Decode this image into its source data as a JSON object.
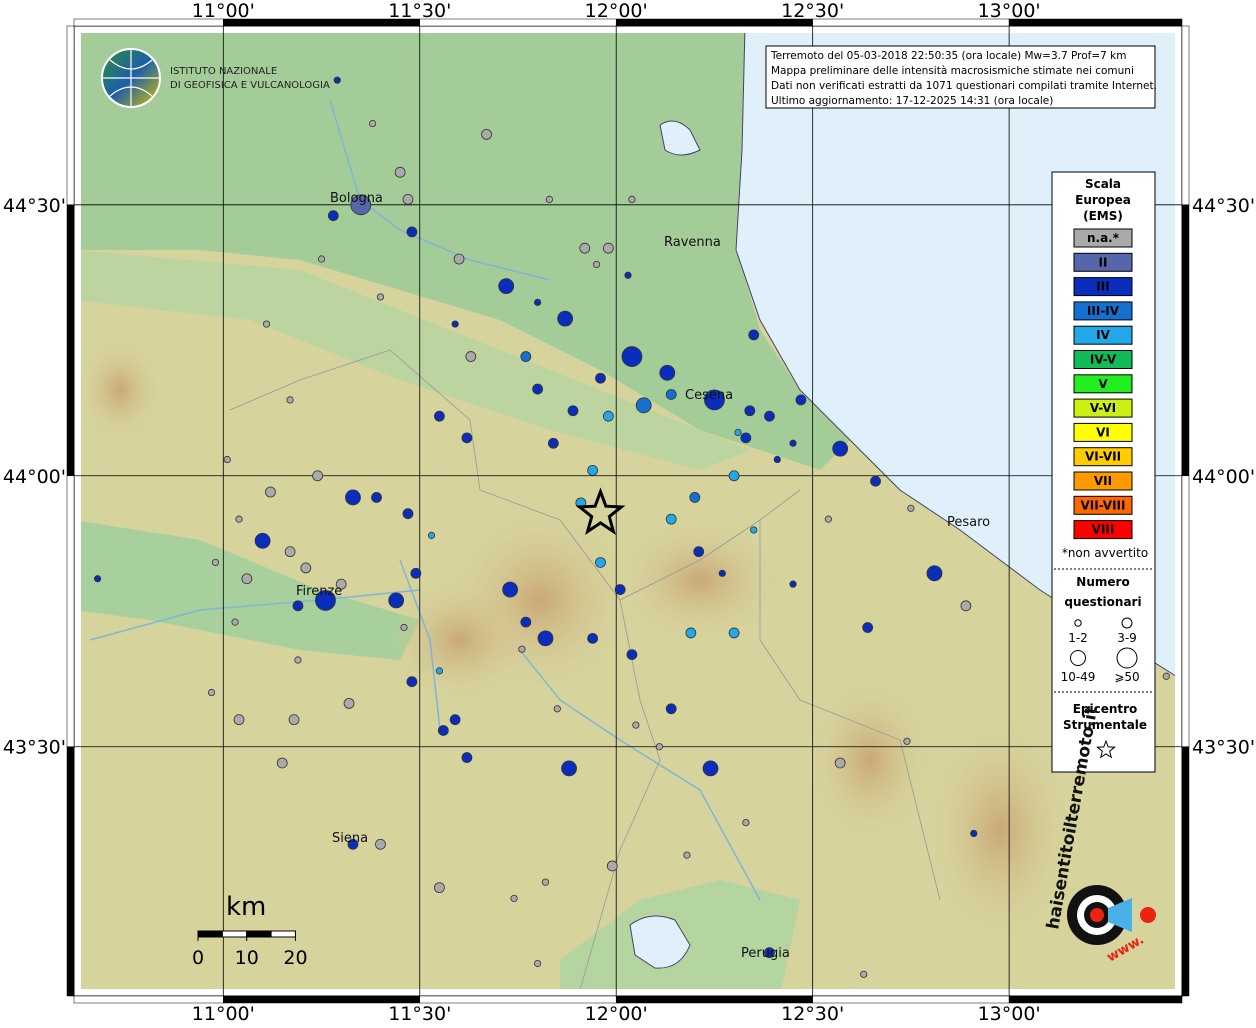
{
  "map": {
    "info": [
      "Terremoto del 05-03-2018 22:50:35 (ora locale) Mw=3.7 Prof=7 km",
      "Mappa preliminare delle intensità macrosismiche stimate nei comuni",
      "Dati non verificati estratti da 1071 questionari compilati tramite Internet.",
      "Ultimo aggiornamento: 17-12-2025 14:31 (ora locale)"
    ],
    "institute": [
      "ISTITUTO NAZIONALE",
      "DI GEOFISICA E VULCANOLOGIA"
    ],
    "lonlim": [
      10.62,
      13.44
    ],
    "latlim": [
      43.04,
      44.83
    ],
    "xticks": [
      {
        "value": 11,
        "label": "11°00'"
      },
      {
        "value": 11.5,
        "label": "11°30'"
      },
      {
        "value": 12,
        "label": "12°00'"
      },
      {
        "value": 12.5,
        "label": "12°30'"
      },
      {
        "value": 13,
        "label": "13°00'"
      }
    ],
    "yticks": [
      {
        "value": 44.5,
        "label": "44°30'"
      },
      {
        "value": 44,
        "label": "44°00'"
      },
      {
        "value": 43.5,
        "label": "43°30'"
      }
    ],
    "cities": [
      "Bologna",
      "Ravenna",
      "Cesena",
      "Pesaro",
      "Firenze",
      "Siena",
      "Perugia"
    ],
    "legend": {
      "title": [
        "Scala",
        "Europea",
        "(EMS)"
      ],
      "items": [
        {
          "label": "n.a.*",
          "color": "#aaaaaa"
        },
        {
          "label": "II",
          "color": "#5566aa"
        },
        {
          "label": "III",
          "color": "#0a2dbb"
        },
        {
          "label": "III-IV",
          "color": "#1570d0"
        },
        {
          "label": "IV",
          "color": "#22a8e8"
        },
        {
          "label": "IV-V",
          "color": "#11bb55"
        },
        {
          "label": "V",
          "color": "#22ee22"
        },
        {
          "label": "V-VI",
          "color": "#ccf011"
        },
        {
          "label": "VI",
          "color": "#ffff00"
        },
        {
          "label": "VI-VII",
          "color": "#ffcc00"
        },
        {
          "label": "VII",
          "color": "#ff9900"
        },
        {
          "label": "VII-VIII",
          "color": "#ff6600"
        },
        {
          "label": "VIII",
          "color": "#ff0000"
        }
      ],
      "note": "*non avvertito",
      "size_title": [
        "Numero",
        "questionari"
      ],
      "sizes": [
        "1-2",
        "3-9",
        "10-49",
        "⩾50"
      ],
      "epi_title": [
        "Epicentro",
        "Strumentale"
      ]
    },
    "epicenter": {
      "lon": 11.96,
      "lat": 43.93
    },
    "scale": {
      "unit": "km",
      "ticks": [
        0,
        10,
        20
      ]
    },
    "site": "haisentitoilterremoto.it",
    "site_prefix": "www.",
    "points": [
      {
        "lon": 11.29,
        "lat": 44.73,
        "i": "III",
        "n": "1-2"
      },
      {
        "lon": 11.38,
        "lat": 44.65,
        "i": "n.a.*",
        "n": "1-2"
      },
      {
        "lon": 11.67,
        "lat": 44.63,
        "i": "n.a.*",
        "n": "3-9"
      },
      {
        "lon": 11.45,
        "lat": 44.56,
        "i": "n.a.*",
        "n": "3-9"
      },
      {
        "lon": 11.35,
        "lat": 44.5,
        "i": "II",
        "n": "⩾50"
      },
      {
        "lon": 11.28,
        "lat": 44.48,
        "i": "III",
        "n": "3-9"
      },
      {
        "lon": 11.47,
        "lat": 44.51,
        "i": "n.a.*",
        "n": "3-9"
      },
      {
        "lon": 11.48,
        "lat": 44.45,
        "i": "III",
        "n": "3-9"
      },
      {
        "lon": 11.6,
        "lat": 44.4,
        "i": "n.a.*",
        "n": "3-9"
      },
      {
        "lon": 11.92,
        "lat": 44.42,
        "i": "n.a.*",
        "n": "3-9"
      },
      {
        "lon": 11.98,
        "lat": 44.42,
        "i": "n.a.*",
        "n": "3-9"
      },
      {
        "lon": 12.03,
        "lat": 44.37,
        "i": "III",
        "n": "1-2"
      },
      {
        "lon": 11.72,
        "lat": 44.35,
        "i": "III",
        "n": "10-49"
      },
      {
        "lon": 11.8,
        "lat": 44.32,
        "i": "III",
        "n": "1-2"
      },
      {
        "lon": 11.87,
        "lat": 44.29,
        "i": "III",
        "n": "10-49"
      },
      {
        "lon": 11.59,
        "lat": 44.28,
        "i": "III",
        "n": "1-2"
      },
      {
        "lon": 11.63,
        "lat": 44.22,
        "i": "n.a.*",
        "n": "3-9"
      },
      {
        "lon": 11.77,
        "lat": 44.22,
        "i": "III-IV",
        "n": "3-9"
      },
      {
        "lon": 12.04,
        "lat": 44.22,
        "i": "III",
        "n": "⩾50"
      },
      {
        "lon": 12.13,
        "lat": 44.19,
        "i": "III",
        "n": "10-49"
      },
      {
        "lon": 11.96,
        "lat": 44.18,
        "i": "III",
        "n": "3-9"
      },
      {
        "lon": 11.8,
        "lat": 44.16,
        "i": "III",
        "n": "3-9"
      },
      {
        "lon": 12.07,
        "lat": 44.13,
        "i": "III-IV",
        "n": "10-49"
      },
      {
        "lon": 12.14,
        "lat": 44.15,
        "i": "III-IV",
        "n": "3-9"
      },
      {
        "lon": 12.25,
        "lat": 44.14,
        "i": "III",
        "n": "⩾50"
      },
      {
        "lon": 11.89,
        "lat": 44.12,
        "i": "III",
        "n": "3-9"
      },
      {
        "lon": 11.98,
        "lat": 44.11,
        "i": "IV",
        "n": "3-9"
      },
      {
        "lon": 11.55,
        "lat": 44.11,
        "i": "III",
        "n": "3-9"
      },
      {
        "lon": 12.35,
        "lat": 44.26,
        "i": "III",
        "n": "3-9"
      },
      {
        "lon": 12.34,
        "lat": 44.12,
        "i": "III",
        "n": "3-9"
      },
      {
        "lon": 12.39,
        "lat": 44.11,
        "i": "III",
        "n": "3-9"
      },
      {
        "lon": 12.33,
        "lat": 44.07,
        "i": "III",
        "n": "3-9"
      },
      {
        "lon": 12.47,
        "lat": 44.14,
        "i": "III",
        "n": "3-9"
      },
      {
        "lon": 12.57,
        "lat": 44.05,
        "i": "III",
        "n": "10-49"
      },
      {
        "lon": 11.84,
        "lat": 44.06,
        "i": "III",
        "n": "3-9"
      },
      {
        "lon": 11.62,
        "lat": 44.07,
        "i": "III",
        "n": "3-9"
      },
      {
        "lon": 11.94,
        "lat": 44.01,
        "i": "IV",
        "n": "3-9"
      },
      {
        "lon": 11.91,
        "lat": 43.95,
        "i": "IV",
        "n": "3-9"
      },
      {
        "lon": 12.3,
        "lat": 44.0,
        "i": "IV",
        "n": "3-9"
      },
      {
        "lon": 12.2,
        "lat": 43.96,
        "i": "III-IV",
        "n": "3-9"
      },
      {
        "lon": 11.33,
        "lat": 43.96,
        "i": "III",
        "n": "10-49"
      },
      {
        "lon": 11.39,
        "lat": 43.96,
        "i": "III",
        "n": "3-9"
      },
      {
        "lon": 11.47,
        "lat": 43.93,
        "i": "III",
        "n": "3-9"
      },
      {
        "lon": 11.24,
        "lat": 44.0,
        "i": "n.a.*",
        "n": "3-9"
      },
      {
        "lon": 11.12,
        "lat": 43.97,
        "i": "n.a.*",
        "n": "3-9"
      },
      {
        "lon": 11.1,
        "lat": 43.88,
        "i": "III",
        "n": "10-49"
      },
      {
        "lon": 11.17,
        "lat": 43.86,
        "i": "n.a.*",
        "n": "3-9"
      },
      {
        "lon": 11.06,
        "lat": 43.81,
        "i": "n.a.*",
        "n": "3-9"
      },
      {
        "lon": 11.21,
        "lat": 43.83,
        "i": "n.a.*",
        "n": "3-9"
      },
      {
        "lon": 11.3,
        "lat": 43.8,
        "i": "n.a.*",
        "n": "3-9"
      },
      {
        "lon": 11.26,
        "lat": 43.77,
        "i": "III",
        "n": "⩾50"
      },
      {
        "lon": 11.19,
        "lat": 43.76,
        "i": "III",
        "n": "3-9"
      },
      {
        "lon": 11.44,
        "lat": 43.77,
        "i": "III",
        "n": "10-49"
      },
      {
        "lon": 11.49,
        "lat": 43.82,
        "i": "III",
        "n": "3-9"
      },
      {
        "lon": 11.73,
        "lat": 43.79,
        "i": "III",
        "n": "10-49"
      },
      {
        "lon": 11.77,
        "lat": 43.73,
        "i": "III",
        "n": "3-9"
      },
      {
        "lon": 11.82,
        "lat": 43.7,
        "i": "III",
        "n": "10-49"
      },
      {
        "lon": 11.94,
        "lat": 43.7,
        "i": "III",
        "n": "3-9"
      },
      {
        "lon": 11.96,
        "lat": 43.84,
        "i": "IV",
        "n": "3-9"
      },
      {
        "lon": 12.01,
        "lat": 43.79,
        "i": "III",
        "n": "3-9"
      },
      {
        "lon": 12.04,
        "lat": 43.67,
        "i": "III",
        "n": "3-9"
      },
      {
        "lon": 12.14,
        "lat": 43.92,
        "i": "IV",
        "n": "3-9"
      },
      {
        "lon": 12.21,
        "lat": 43.86,
        "i": "III",
        "n": "3-9"
      },
      {
        "lon": 12.19,
        "lat": 43.71,
        "i": "IV",
        "n": "3-9"
      },
      {
        "lon": 12.3,
        "lat": 43.71,
        "i": "IV",
        "n": "3-9"
      },
      {
        "lon": 12.64,
        "lat": 43.72,
        "i": "III",
        "n": "3-9"
      },
      {
        "lon": 12.81,
        "lat": 43.82,
        "i": "III",
        "n": "10-49"
      },
      {
        "lon": 12.89,
        "lat": 43.76,
        "i": "n.a.*",
        "n": "3-9"
      },
      {
        "lon": 12.66,
        "lat": 43.99,
        "i": "III",
        "n": "3-9"
      },
      {
        "lon": 11.48,
        "lat": 43.62,
        "i": "III",
        "n": "3-9"
      },
      {
        "lon": 11.32,
        "lat": 43.58,
        "i": "n.a.*",
        "n": "3-9"
      },
      {
        "lon": 11.18,
        "lat": 43.55,
        "i": "n.a.*",
        "n": "3-9"
      },
      {
        "lon": 11.04,
        "lat": 43.55,
        "i": "n.a.*",
        "n": "3-9"
      },
      {
        "lon": 11.15,
        "lat": 43.47,
        "i": "n.a.*",
        "n": "3-9"
      },
      {
        "lon": 11.59,
        "lat": 43.55,
        "i": "III",
        "n": "3-9"
      },
      {
        "lon": 11.56,
        "lat": 43.53,
        "i": "III",
        "n": "3-9"
      },
      {
        "lon": 11.62,
        "lat": 43.48,
        "i": "III",
        "n": "3-9"
      },
      {
        "lon": 11.88,
        "lat": 43.46,
        "i": "III",
        "n": "10-49"
      },
      {
        "lon": 12.14,
        "lat": 43.57,
        "i": "III",
        "n": "3-9"
      },
      {
        "lon": 12.24,
        "lat": 43.46,
        "i": "III",
        "n": "10-49"
      },
      {
        "lon": 12.57,
        "lat": 43.47,
        "i": "n.a.*",
        "n": "3-9"
      },
      {
        "lon": 11.33,
        "lat": 43.32,
        "i": "III",
        "n": "3-9"
      },
      {
        "lon": 11.4,
        "lat": 43.32,
        "i": "n.a.*",
        "n": "3-9"
      },
      {
        "lon": 11.99,
        "lat": 43.28,
        "i": "n.a.*",
        "n": "3-9"
      },
      {
        "lon": 12.39,
        "lat": 43.12,
        "i": "III",
        "n": "3-9"
      },
      {
        "lon": 11.55,
        "lat": 43.24,
        "i": "n.a.*",
        "n": "3-9"
      },
      {
        "lon": 10.68,
        "lat": 43.81,
        "i": "III",
        "n": "1-2"
      },
      {
        "lon": 12.91,
        "lat": 43.34,
        "i": "III",
        "n": "1-2"
      },
      {
        "lon": 11.25,
        "lat": 44.4,
        "i": "n.a.*",
        "n": "1-2"
      },
      {
        "lon": 11.4,
        "lat": 44.33,
        "i": "n.a.*",
        "n": "1-2"
      },
      {
        "lon": 11.11,
        "lat": 44.28,
        "i": "n.a.*",
        "n": "1-2"
      },
      {
        "lon": 11.17,
        "lat": 44.14,
        "i": "n.a.*",
        "n": "1-2"
      },
      {
        "lon": 11.01,
        "lat": 44.03,
        "i": "n.a.*",
        "n": "1-2"
      },
      {
        "lon": 11.04,
        "lat": 43.92,
        "i": "n.a.*",
        "n": "1-2"
      },
      {
        "lon": 10.98,
        "lat": 43.84,
        "i": "n.a.*",
        "n": "1-2"
      },
      {
        "lon": 11.03,
        "lat": 43.73,
        "i": "n.a.*",
        "n": "1-2"
      },
      {
        "lon": 10.97,
        "lat": 43.6,
        "i": "n.a.*",
        "n": "1-2"
      },
      {
        "lon": 11.19,
        "lat": 43.66,
        "i": "n.a.*",
        "n": "1-2"
      },
      {
        "lon": 11.46,
        "lat": 43.72,
        "i": "n.a.*",
        "n": "1-2"
      },
      {
        "lon": 11.76,
        "lat": 43.68,
        "i": "n.a.*",
        "n": "1-2"
      },
      {
        "lon": 11.85,
        "lat": 43.57,
        "i": "n.a.*",
        "n": "1-2"
      },
      {
        "lon": 12.05,
        "lat": 43.54,
        "i": "n.a.*",
        "n": "1-2"
      },
      {
        "lon": 12.11,
        "lat": 43.5,
        "i": "n.a.*",
        "n": "1-2"
      },
      {
        "lon": 12.74,
        "lat": 43.51,
        "i": "n.a.*",
        "n": "1-2"
      },
      {
        "lon": 12.63,
        "lat": 43.08,
        "i": "n.a.*",
        "n": "1-2"
      },
      {
        "lon": 12.33,
        "lat": 43.36,
        "i": "n.a.*",
        "n": "1-2"
      },
      {
        "lon": 12.18,
        "lat": 43.3,
        "i": "n.a.*",
        "n": "1-2"
      },
      {
        "lon": 11.82,
        "lat": 43.25,
        "i": "n.a.*",
        "n": "1-2"
      },
      {
        "lon": 11.74,
        "lat": 43.22,
        "i": "n.a.*",
        "n": "1-2"
      },
      {
        "lon": 11.8,
        "lat": 43.1,
        "i": "n.a.*",
        "n": "1-2"
      },
      {
        "lon": 11.83,
        "lat": 44.51,
        "i": "n.a.*",
        "n": "1-2"
      },
      {
        "lon": 12.04,
        "lat": 44.51,
        "i": "n.a.*",
        "n": "1-2"
      },
      {
        "lon": 11.95,
        "lat": 44.39,
        "i": "n.a.*",
        "n": "1-2"
      },
      {
        "lon": 13.4,
        "lat": 43.63,
        "i": "n.a.*",
        "n": "1-2"
      },
      {
        "lon": 12.54,
        "lat": 43.92,
        "i": "n.a.*",
        "n": "1-2"
      },
      {
        "lon": 12.75,
        "lat": 43.94,
        "i": "n.a.*",
        "n": "1-2"
      },
      {
        "lon": 11.55,
        "lat": 43.64,
        "i": "IV",
        "n": "1-2"
      },
      {
        "lon": 11.53,
        "lat": 43.89,
        "i": "IV",
        "n": "1-2"
      },
      {
        "lon": 12.45,
        "lat": 43.8,
        "i": "III",
        "n": "1-2"
      },
      {
        "lon": 12.31,
        "lat": 44.08,
        "i": "IV",
        "n": "1-2"
      },
      {
        "lon": 12.41,
        "lat": 44.03,
        "i": "III",
        "n": "1-2"
      },
      {
        "lon": 12.45,
        "lat": 44.06,
        "i": "III",
        "n": "1-2"
      },
      {
        "lon": 12.35,
        "lat": 43.9,
        "i": "IV",
        "n": "1-2"
      },
      {
        "lon": 12.27,
        "lat": 43.82,
        "i": "III",
        "n": "1-2"
      }
    ]
  }
}
